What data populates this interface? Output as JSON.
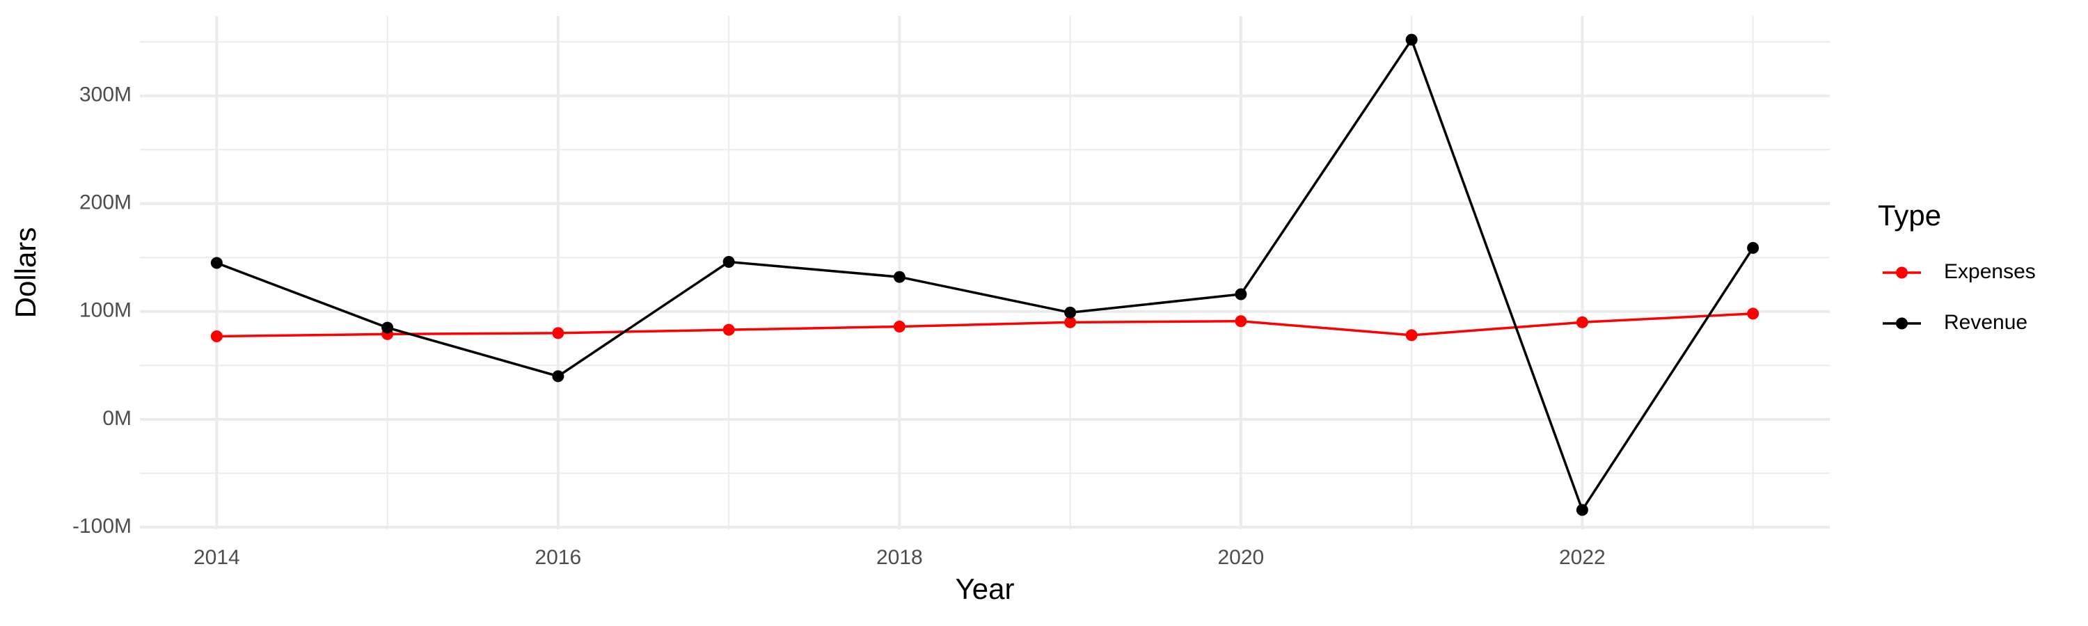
{
  "chart_data": {
    "type": "line",
    "x_label": "Year",
    "y_label": "Dollars",
    "x": [
      2014,
      2015,
      2016,
      2017,
      2018,
      2019,
      2020,
      2021,
      2022,
      2023
    ],
    "series": [
      {
        "name": "Expenses",
        "color": "#ff0000",
        "values": [
          77000000,
          79000000,
          80000000,
          83000000,
          86000000,
          90000000,
          91000000,
          78000000,
          90000000,
          98000000
        ]
      },
      {
        "name": "Revenue",
        "color": "#000000",
        "values": [
          145000000,
          85000000,
          40000000,
          146000000,
          132000000,
          99000000,
          116000000,
          352000000,
          -84000000,
          159000000
        ]
      }
    ],
    "xlim": [
      2013.55,
      2023.45
    ],
    "xticks": [
      2014,
      2016,
      2018,
      2020,
      2022
    ],
    "x_minor_ticks": [
      2015,
      2017,
      2019,
      2021,
      2023
    ],
    "ylim": [
      -102000000,
      374000000
    ],
    "yticks": [
      {
        "value": -100000000,
        "label": "-100M"
      },
      {
        "value": 0,
        "label": "0M"
      },
      {
        "value": 100000000,
        "label": "100M"
      },
      {
        "value": 200000000,
        "label": "200M"
      },
      {
        "value": 300000000,
        "label": "300M"
      }
    ],
    "y_minor_ticks": [
      -50000000,
      50000000,
      150000000,
      250000000,
      350000000
    ],
    "grid": true,
    "legend_title": "Type",
    "legend_position": "right"
  }
}
